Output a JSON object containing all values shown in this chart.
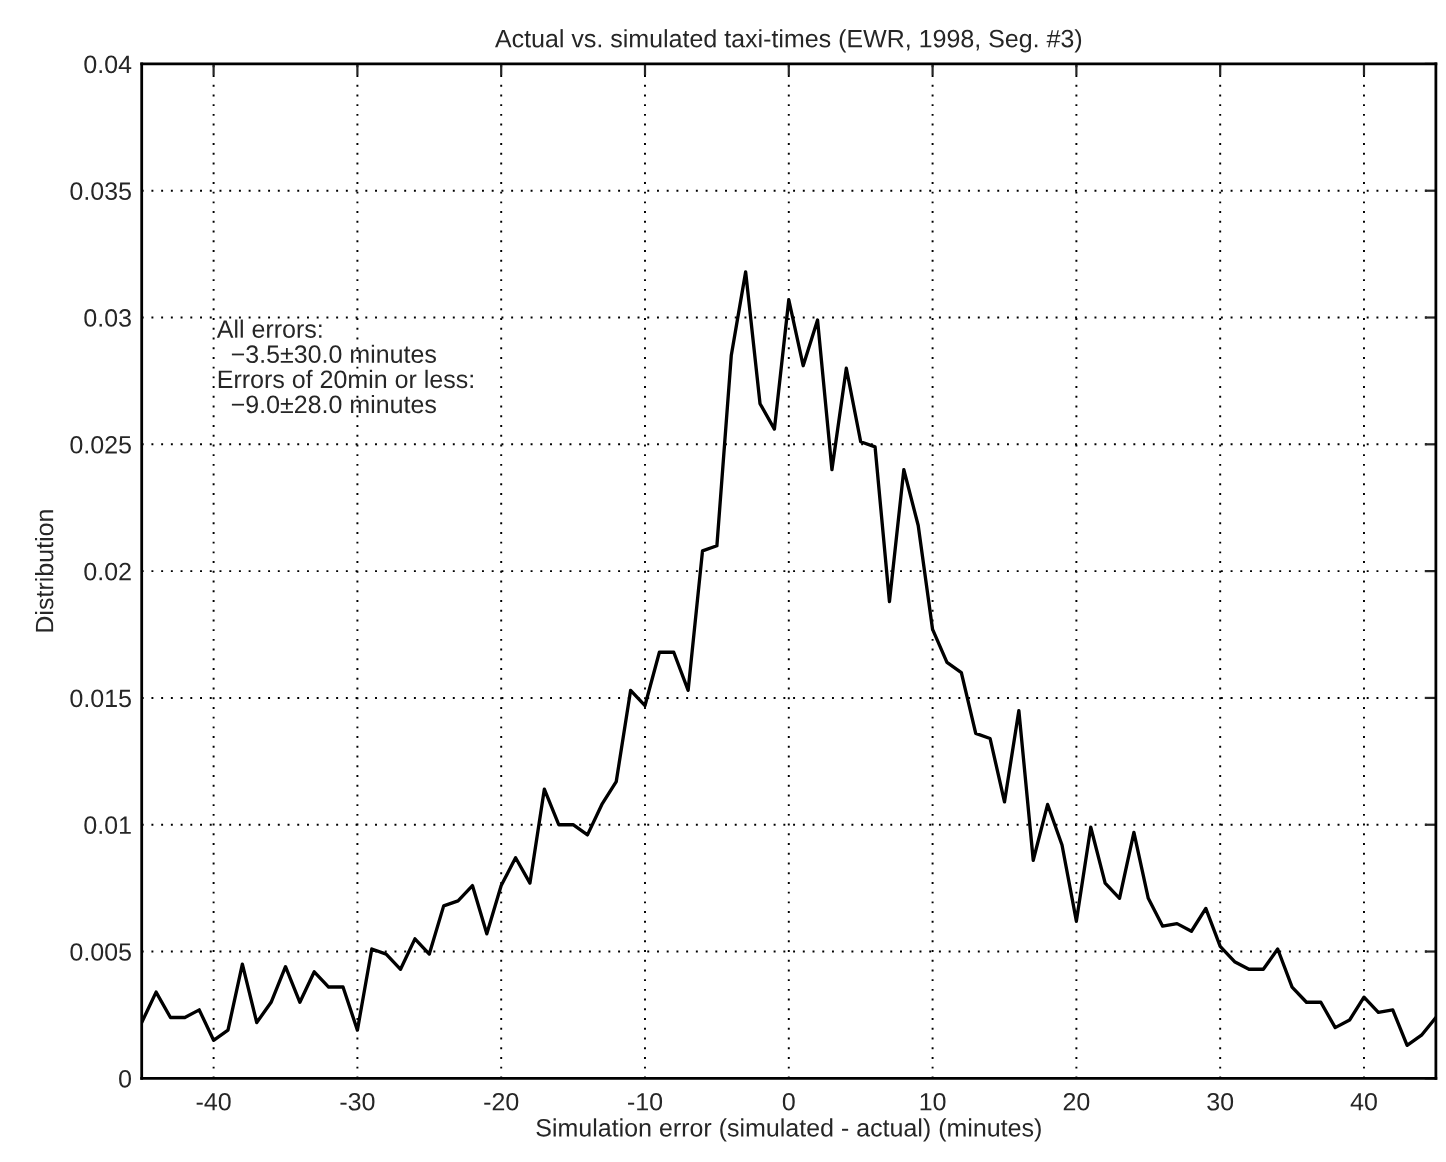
{
  "chart_data": {
    "type": "line",
    "title": "Actual vs. simulated taxi-times (EWR, 1998, Seg. #3)",
    "xlabel": "Simulation error (simulated - actual) (minutes)",
    "ylabel": "Distribution",
    "x": [
      -45,
      -44,
      -43,
      -42,
      -41,
      -40,
      -39,
      -38,
      -37,
      -36,
      -35,
      -34,
      -33,
      -32,
      -31,
      -30,
      -29,
      -28,
      -27,
      -26,
      -25,
      -24,
      -23,
      -22,
      -21,
      -20,
      -19,
      -18,
      -17,
      -16,
      -15,
      -14,
      -13,
      -12,
      -11,
      -10,
      -9,
      -8,
      -7,
      -6,
      -5,
      -4,
      -3,
      -2,
      -1,
      0,
      1,
      2,
      3,
      4,
      5,
      6,
      7,
      8,
      9,
      10,
      11,
      12,
      13,
      14,
      15,
      16,
      17,
      18,
      19,
      20,
      21,
      22,
      23,
      24,
      25,
      26,
      27,
      28,
      29,
      30,
      31,
      32,
      33,
      34,
      35,
      36,
      37,
      38,
      39,
      40,
      41,
      42,
      43,
      44,
      45
    ],
    "series": [
      {
        "color": "#000000",
        "values": [
          0.0022,
          0.0034,
          0.0024,
          0.0024,
          0.0027,
          0.0015,
          0.0019,
          0.0045,
          0.0022,
          0.003,
          0.0044,
          0.003,
          0.0042,
          0.0036,
          0.0036,
          0.0019,
          0.0051,
          0.0049,
          0.0043,
          0.0055,
          0.0049,
          0.0068,
          0.007,
          0.0076,
          0.0057,
          0.0076,
          0.0087,
          0.0077,
          0.0114,
          0.01,
          0.01,
          0.0096,
          0.0108,
          0.0117,
          0.0153,
          0.0147,
          0.0168,
          0.0168,
          0.0153,
          0.0208,
          0.021,
          0.0285,
          0.0318,
          0.0266,
          0.0256,
          0.0307,
          0.0281,
          0.0299,
          0.024,
          0.028,
          0.0251,
          0.0249,
          0.0188,
          0.024,
          0.0218,
          0.0177,
          0.0164,
          0.016,
          0.0136,
          0.0134,
          0.0109,
          0.0145,
          0.0086,
          0.0108,
          0.0092,
          0.0062,
          0.0099,
          0.0077,
          0.0071,
          0.0097,
          0.0071,
          0.006,
          0.0061,
          0.0058,
          0.0067,
          0.0052,
          0.0046,
          0.0043,
          0.0043,
          0.0051,
          0.0036,
          0.003,
          0.003,
          0.002,
          0.0023,
          0.0032,
          0.0026,
          0.0027,
          0.0013,
          0.0017,
          0.0024
        ]
      }
    ],
    "xlim": [
      -45,
      45
    ],
    "xticks": [
      -40,
      -30,
      -20,
      -10,
      0,
      10,
      20,
      30,
      40
    ],
    "ylim": [
      0,
      0.04
    ],
    "yticks": [
      0,
      0.005,
      0.01,
      0.015,
      0.02,
      0.025,
      0.03,
      0.035,
      0.04
    ],
    "grid": true,
    "line_style": "solid",
    "marker": "none",
    "annotations": [
      "All errors:\n  −3.5±30.0 minutes\nErrors of 20min or less:\n  −9.0±28.0 minutes"
    ]
  }
}
